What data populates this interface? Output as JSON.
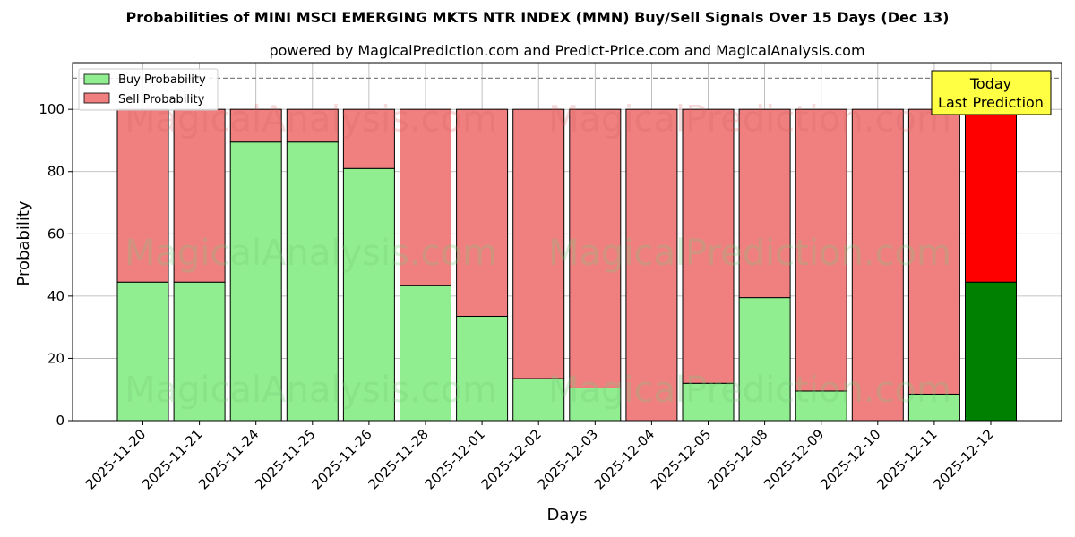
{
  "chart_data": {
    "type": "bar",
    "stacked": true,
    "title": "Probabilities of MINI MSCI EMERGING MKTS NTR INDEX (MMN) Buy/Sell Signals Over 15 Days (Dec 13)",
    "subtitle": "powered by MagicalPrediction.com and Predict-Price.com and MagicalAnalysis.com",
    "xlabel": "Days",
    "ylabel": "Probability",
    "ylim": [
      0,
      115
    ],
    "yticks": [
      0,
      20,
      40,
      60,
      80,
      100
    ],
    "reference_line": 110,
    "grid": true,
    "legend_position": "top-left",
    "categories": [
      "2025-11-20",
      "2025-11-21",
      "2025-11-24",
      "2025-11-25",
      "2025-11-26",
      "2025-11-28",
      "2025-12-01",
      "2025-12-02",
      "2025-12-03",
      "2025-12-04",
      "2025-12-05",
      "2025-12-08",
      "2025-12-09",
      "2025-12-10",
      "2025-12-11",
      "2025-12-12"
    ],
    "series": [
      {
        "name": "Buy Probability",
        "color": "#90ee90",
        "highlight_color": "#008000",
        "values": [
          44.5,
          44.5,
          89.5,
          89.5,
          81,
          43.5,
          33.5,
          13.5,
          10.5,
          0,
          12,
          39.5,
          9.5,
          0,
          8.5,
          44.5
        ]
      },
      {
        "name": "Sell Probability",
        "color": "#f08080",
        "highlight_color": "#ff0000",
        "values": [
          55.5,
          55.5,
          10.5,
          10.5,
          19,
          56.5,
          66.5,
          86.5,
          89.5,
          100,
          88,
          60.5,
          90.5,
          100,
          91.5,
          55.5
        ]
      }
    ],
    "annotation": {
      "line1": "Today",
      "line2": "Last Prediction",
      "color": "#ffff44"
    },
    "watermarks": [
      "MagicalAnalysis.com",
      "MagicalPrediction.com"
    ]
  }
}
